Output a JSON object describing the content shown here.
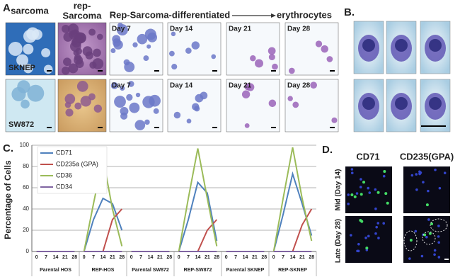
{
  "panel_a": {
    "label": "A.",
    "sarcoma": "sarcoma",
    "rep_sarcoma": [
      "rep-",
      "Sarcoma"
    ],
    "title": "Rep-Sarcoma-differentiated",
    "title_end": "erythrocytes",
    "rows": [
      {
        "cell_line": "SKNEP",
        "days": [
          "Day 7",
          "Day 14",
          "Day 21",
          "Day 28"
        ]
      },
      {
        "cell_line": "SW872",
        "days": [
          "Day 7",
          "Day 14",
          "Day 21",
          "Day 28"
        ]
      }
    ]
  },
  "panel_b": {
    "label": "B."
  },
  "panel_d": {
    "label": "D.",
    "columns": [
      "CD71",
      "CD235(GPA)"
    ],
    "rows": [
      "Mid (Day 14)",
      "Late (Day 28)"
    ]
  },
  "chart_data": {
    "type": "line",
    "label": "C.",
    "y_label": "Percentage of Cells",
    "ylim": [
      0,
      100
    ],
    "yticks": [
      0,
      20,
      40,
      60,
      80,
      100
    ],
    "grid": true,
    "legend": "upper-left",
    "groups": [
      "Parental HOS",
      "REP-HOS",
      "Parental SW872",
      "REP-SW872",
      "Parental SKNEP",
      "REP-SKNEP"
    ],
    "categories": [
      "0",
      "7",
      "14",
      "21",
      "28",
      "0",
      "7",
      "14",
      "21",
      "28",
      "0",
      "7",
      "14",
      "21",
      "28",
      "0",
      "7",
      "14",
      "21",
      "28",
      "0",
      "7",
      "14",
      "21",
      "28",
      "0",
      "7",
      "14",
      "21",
      "28"
    ],
    "series": [
      {
        "name": "CD71",
        "color": "#4f81bd",
        "values": [
          0,
          0,
          0,
          0,
          0,
          0,
          30,
          50,
          45,
          20,
          0,
          0,
          0,
          0,
          0,
          0,
          30,
          65,
          55,
          10,
          0,
          0,
          0,
          0,
          0,
          0,
          35,
          73,
          45,
          15
        ]
      },
      {
        "name": "CD235a (GPA)",
        "color": "#c0504d",
        "values": [
          0,
          0,
          0,
          0,
          0,
          0,
          0,
          0,
          30,
          40,
          0,
          0,
          0,
          0,
          0,
          0,
          0,
          0,
          20,
          30,
          0,
          0,
          0,
          0,
          0,
          0,
          0,
          0,
          25,
          40
        ]
      },
      {
        "name": "CD36",
        "color": "#9bbb59",
        "values": [
          0,
          0,
          0,
          0,
          0,
          0,
          45,
          88,
          40,
          5,
          0,
          0,
          0,
          0,
          0,
          0,
          50,
          97,
          50,
          5,
          0,
          0,
          0,
          0,
          0,
          0,
          50,
          98,
          50,
          10
        ]
      },
      {
        "name": "CD34",
        "color": "#8064a2",
        "values": [
          0,
          0,
          0,
          0,
          0,
          0,
          0,
          0,
          0,
          0,
          0,
          0,
          0,
          0,
          0,
          0,
          0,
          0,
          0,
          0,
          0,
          0,
          0,
          0,
          0,
          0,
          0,
          0,
          0,
          0
        ]
      }
    ]
  }
}
